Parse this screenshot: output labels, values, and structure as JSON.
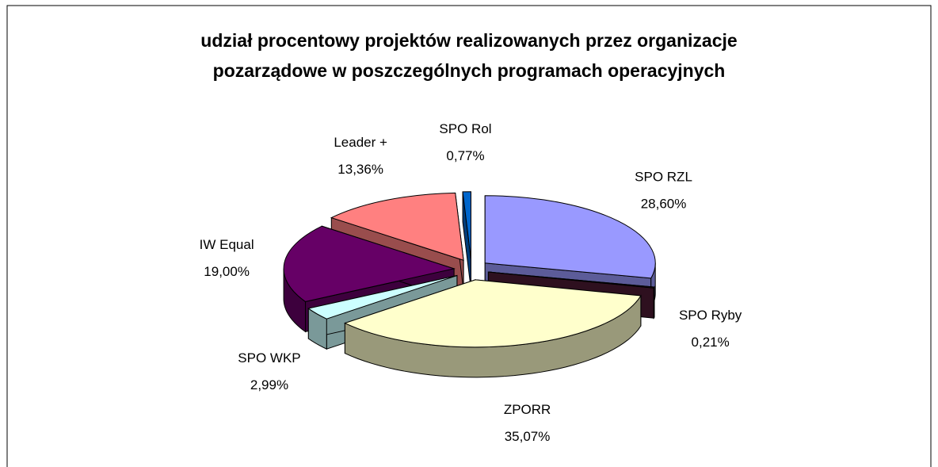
{
  "chart_data": {
    "type": "pie3d",
    "title": "udział procentowy projektów realizowanych przez organizacje pozarządowe w poszczególnych programach operacyjnych",
    "categories": [
      "SPO RZL",
      "SPO Ryby",
      "ZPORR",
      "SPO WKP",
      "IW Equal",
      "Leader +",
      "SPO Rol"
    ],
    "values": [
      28.6,
      0.21,
      35.07,
      2.99,
      19.0,
      13.36,
      0.77
    ],
    "value_labels": [
      "28,60%",
      "0,21%",
      "35,07%",
      "2,99%",
      "19,00%",
      "13,36%",
      "0,77%"
    ],
    "colors": [
      "#9999ff",
      "#4d1a33",
      "#ffffcc",
      "#ccffff",
      "#660066",
      "#ff8080",
      "#0066cc"
    ]
  }
}
